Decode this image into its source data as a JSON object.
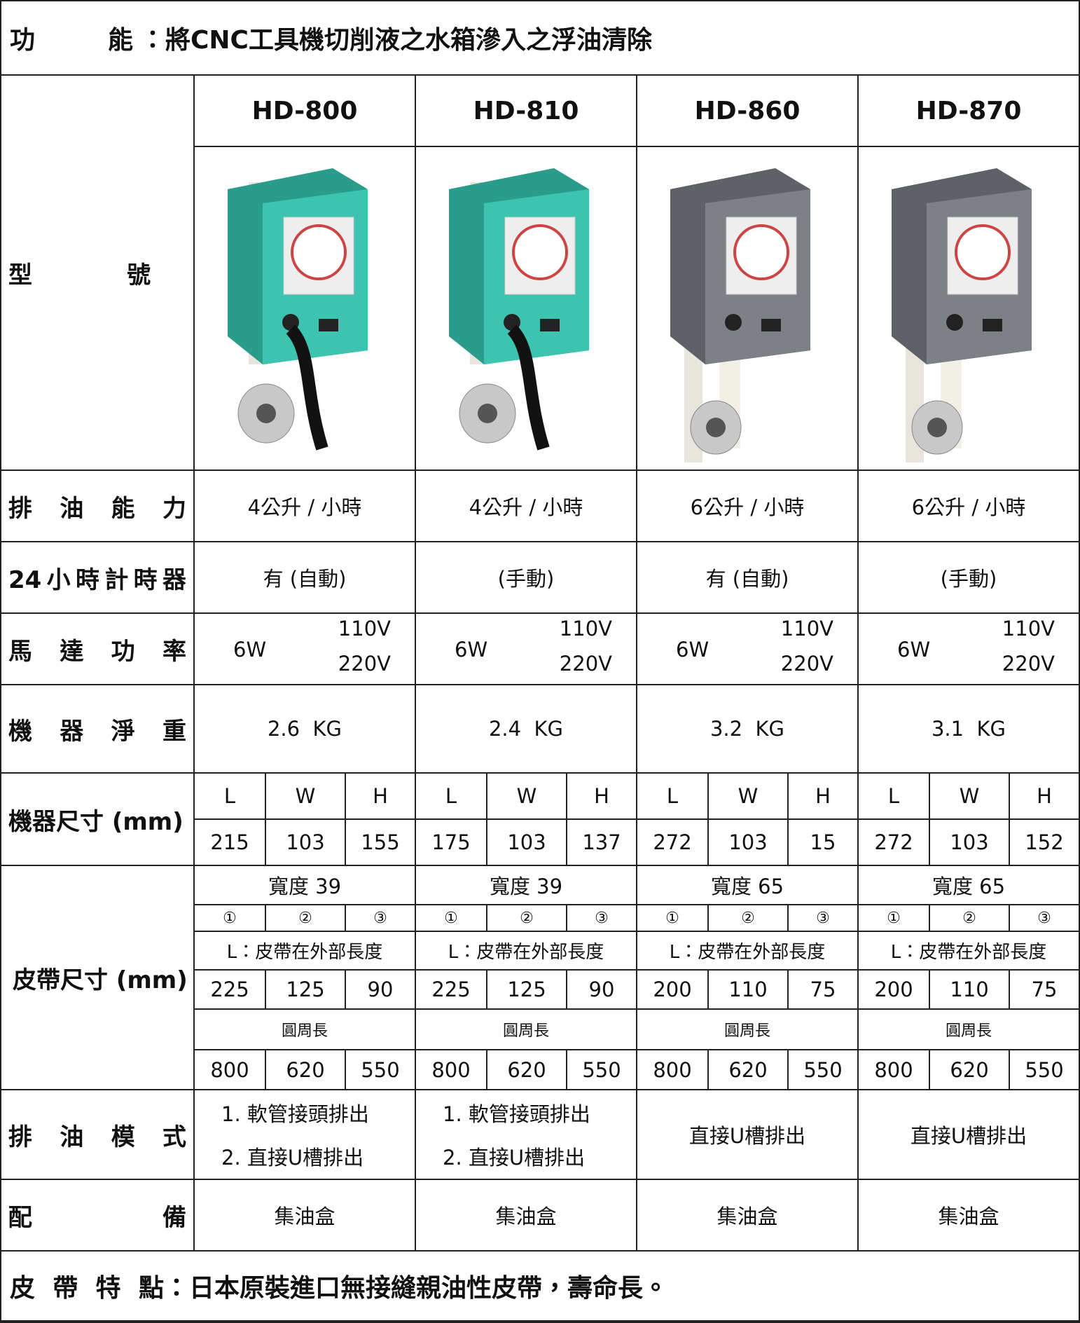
{
  "header": {
    "label": "功能",
    "text": "：將CNC工具機切削液之水箱滲入之浮油清除"
  },
  "row_labels": {
    "model": "型號",
    "capacity": "排油能力",
    "timer": "24小時計時器",
    "power": "馬達功率",
    "weight": "機器淨重",
    "dims": "機器尺寸 (mm)",
    "belt": "皮帶尺寸 (mm)",
    "mode": "排油模式",
    "equip": "配備"
  },
  "models": [
    {
      "name": "HD-800",
      "capacity": "4公升 / 小時",
      "timer": "有 (自動)",
      "power": {
        "w": "6W",
        "v1": "110V",
        "v2": "220V"
      },
      "weight": "2.6  KG",
      "dim_labels": [
        "L",
        "W",
        "H"
      ],
      "dims": [
        215,
        103,
        155
      ],
      "belt_width": "寬度 39",
      "markers": [
        "①",
        "②",
        "③"
      ],
      "length_label": "L：皮帶在外部長度",
      "lengths": [
        225,
        125,
        90
      ],
      "circ_label": "圓周長",
      "circs": [
        800,
        620,
        550
      ],
      "mode": [
        "1. 軟管接頭排出",
        "2. 直接U槽排出"
      ],
      "equip": "集油盒"
    },
    {
      "name": "HD-810",
      "capacity": "4公升 / 小時",
      "timer": "(手動)",
      "power": {
        "w": "6W",
        "v1": "110V",
        "v2": "220V"
      },
      "weight": "2.4  KG",
      "dim_labels": [
        "L",
        "W",
        "H"
      ],
      "dims": [
        175,
        103,
        137
      ],
      "belt_width": "寬度 39",
      "markers": [
        "①",
        "②",
        "③"
      ],
      "length_label": "L：皮帶在外部長度",
      "lengths": [
        225,
        125,
        90
      ],
      "circ_label": "圓周長",
      "circs": [
        800,
        620,
        550
      ],
      "mode": [
        "1. 軟管接頭排出",
        "2. 直接U槽排出"
      ],
      "equip": "集油盒"
    },
    {
      "name": "HD-860",
      "capacity": "6公升 / 小時",
      "timer": "有 (自動)",
      "power": {
        "w": "6W",
        "v1": "110V",
        "v2": "220V"
      },
      "weight": "3.2  KG",
      "dim_labels": [
        "L",
        "W",
        "H"
      ],
      "dims": [
        272,
        103,
        15
      ],
      "belt_width": "寬度 65",
      "markers": [
        "①",
        "②",
        "③"
      ],
      "length_label": "L：皮帶在外部長度",
      "lengths": [
        200,
        110,
        75
      ],
      "circ_label": "圓周長",
      "circs": [
        800,
        620,
        550
      ],
      "mode": [
        "直接U槽排出"
      ],
      "equip": "集油盒"
    },
    {
      "name": "HD-870",
      "capacity": "6公升 / 小時",
      "timer": "(手動)",
      "power": {
        "w": "6W",
        "v1": "110V",
        "v2": "220V"
      },
      "weight": "3.1  KG",
      "dim_labels": [
        "L",
        "W",
        "H"
      ],
      "dims": [
        272,
        103,
        152
      ],
      "belt_width": "寬度 65",
      "markers": [
        "①",
        "②",
        "③"
      ],
      "length_label": "L：皮帶在外部長度",
      "lengths": [
        200,
        110,
        75
      ],
      "circ_label": "圓周長",
      "circs": [
        800,
        620,
        550
      ],
      "mode": [
        "直接U槽排出"
      ],
      "equip": "集油盒"
    }
  ],
  "footer": {
    "label": "皮帶特點",
    "text": "：日本原裝進口無接縫親油性皮帶，壽命長。"
  }
}
